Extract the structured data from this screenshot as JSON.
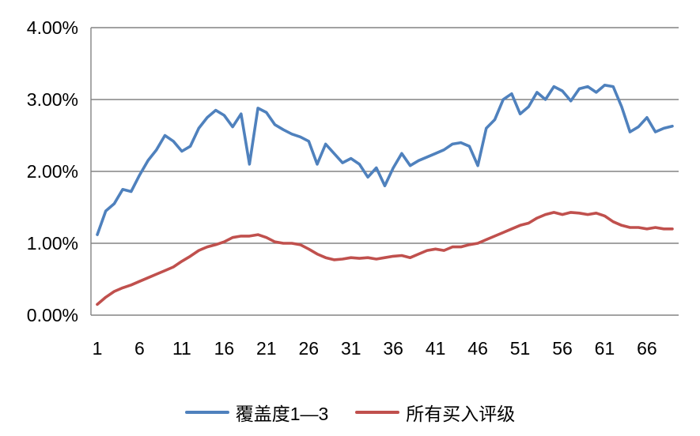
{
  "chart_data": {
    "type": "line",
    "x_tick_labels": [
      "1",
      "6",
      "11",
      "16",
      "21",
      "26",
      "31",
      "36",
      "41",
      "46",
      "51",
      "56",
      "61",
      "66"
    ],
    "y_tick_labels": [
      "0.00%",
      "1.00%",
      "2.00%",
      "3.00%",
      "4.00%"
    ],
    "ylim": [
      0,
      4
    ],
    "grid": true,
    "legend_position": "bottom",
    "series": [
      {
        "name": "覆盖度1—3",
        "color": "#4F81BD",
        "values": [
          1.12,
          1.45,
          1.55,
          1.75,
          1.72,
          1.95,
          2.15,
          2.3,
          2.5,
          2.42,
          2.28,
          2.35,
          2.6,
          2.75,
          2.85,
          2.78,
          2.62,
          2.8,
          2.1,
          2.88,
          2.82,
          2.65,
          2.58,
          2.52,
          2.48,
          2.42,
          2.1,
          2.38,
          2.25,
          2.12,
          2.18,
          2.1,
          1.92,
          2.05,
          1.8,
          2.05,
          2.25,
          2.08,
          2.15,
          2.2,
          2.25,
          2.3,
          2.38,
          2.4,
          2.35,
          2.08,
          2.6,
          2.72,
          3.0,
          3.08,
          2.8,
          2.9,
          3.1,
          3.0,
          3.18,
          3.12,
          2.98,
          3.15,
          3.18,
          3.1,
          3.2,
          3.18,
          2.9,
          2.55,
          2.62,
          2.75,
          2.55,
          2.6,
          2.63
        ]
      },
      {
        "name": "所有买入评级",
        "color": "#C0504D",
        "values": [
          0.15,
          0.25,
          0.33,
          0.38,
          0.42,
          0.47,
          0.52,
          0.57,
          0.62,
          0.67,
          0.75,
          0.82,
          0.9,
          0.95,
          0.98,
          1.02,
          1.08,
          1.1,
          1.1,
          1.12,
          1.08,
          1.02,
          1.0,
          1.0,
          0.98,
          0.92,
          0.85,
          0.8,
          0.77,
          0.78,
          0.8,
          0.79,
          0.8,
          0.78,
          0.8,
          0.82,
          0.83,
          0.8,
          0.85,
          0.9,
          0.92,
          0.9,
          0.95,
          0.95,
          0.98,
          1.0,
          1.05,
          1.1,
          1.15,
          1.2,
          1.25,
          1.28,
          1.35,
          1.4,
          1.43,
          1.4,
          1.43,
          1.42,
          1.4,
          1.42,
          1.38,
          1.3,
          1.25,
          1.22,
          1.22,
          1.2,
          1.22,
          1.2,
          1.2
        ]
      }
    ]
  },
  "colors": {
    "gridline": "#848484",
    "axis": "#848484",
    "text": "#000000",
    "background": "#FFFFFF"
  }
}
